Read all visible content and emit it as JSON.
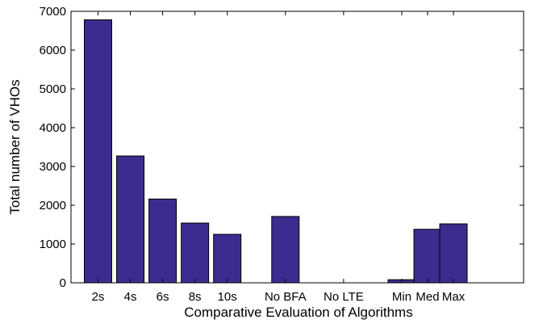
{
  "chart_data": {
    "type": "bar",
    "title": "",
    "xlabel": "Comparative Evaluation of Algorithms",
    "ylabel": "Total number of VHOs",
    "ylim": [
      0,
      7000
    ],
    "yticks": [
      0,
      1000,
      2000,
      3000,
      4000,
      5000,
      6000,
      7000
    ],
    "xlim": [
      0,
      12
    ],
    "categories": [
      {
        "label": "2s",
        "x": 1,
        "value": 6780
      },
      {
        "label": "4s",
        "x": 2,
        "value": 3270
      },
      {
        "label": "6s",
        "x": 3,
        "value": 2160
      },
      {
        "label": "8s",
        "x": 4,
        "value": 1540
      },
      {
        "label": "10s",
        "x": 5,
        "value": 1250
      },
      {
        "label": "No BFA",
        "x": 6.8,
        "value": 1710
      },
      {
        "label": "No LTE",
        "x": 8.6,
        "value": 0
      },
      {
        "label": "Min",
        "x": 10.4,
        "value": 80
      },
      {
        "label": "Med",
        "x": 11.2,
        "value": 1380
      },
      {
        "label": "Max",
        "x": 12,
        "value": 1520
      }
    ],
    "grid": false,
    "bar_color": "#3b2c8f",
    "bar_edge_color": "#000000"
  }
}
